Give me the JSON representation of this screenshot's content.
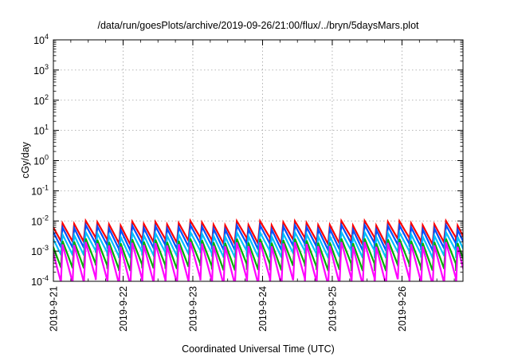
{
  "chart_data": {
    "type": "line",
    "title": "/data/run/goesPlots/archive/2019-09-26/21:00/flux/../bryn/5daysMars.plot",
    "xlabel": "Coordinated Universal Time (UTC)",
    "ylabel": "cGy/day",
    "y_scale": "log",
    "ylim": [
      0.0001,
      10000
    ],
    "y_ticks": [
      {
        "base": "10",
        "exp": "4",
        "value": 10000
      },
      {
        "base": "10",
        "exp": "3",
        "value": 1000
      },
      {
        "base": "10",
        "exp": "2",
        "value": 100
      },
      {
        "base": "10",
        "exp": "1",
        "value": 10
      },
      {
        "base": "10",
        "exp": "0",
        "value": 1
      },
      {
        "base": "10",
        "exp": "-1",
        "value": 0.1
      },
      {
        "base": "10",
        "exp": "-2",
        "value": 0.01
      },
      {
        "base": "10",
        "exp": "-3",
        "value": 0.001
      },
      {
        "base": "10",
        "exp": "-4",
        "value": 0.0001
      }
    ],
    "xlim": [
      "2019-9-21 00:00",
      "2019-9-26 21:00"
    ],
    "x_ticks": [
      "2019-9-21",
      "2019-9-22",
      "2019-9-23",
      "2019-9-24",
      "2019-9-25",
      "2019-9-26"
    ],
    "grid": true,
    "sawtooth_period_hours": 4,
    "series": [
      {
        "color": "#ff0000",
        "peak": 0.0085,
        "trough": 0.0022
      },
      {
        "color": "#0050ff",
        "peak": 0.0062,
        "trough": 0.0014
      },
      {
        "color": "#00c0ff",
        "peak": 0.0036,
        "trough": 0.0008
      },
      {
        "color": "#00b000",
        "peak": 0.0022,
        "trough": 0.0003
      },
      {
        "color": "#ff00ff",
        "peak": 0.0017,
        "trough": 0.0001
      }
    ]
  }
}
